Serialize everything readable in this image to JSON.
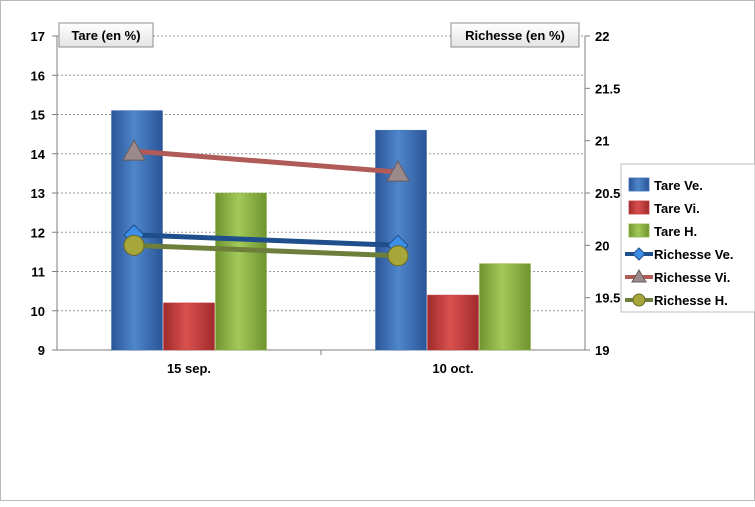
{
  "chart_data": {
    "type": "bar",
    "categories": [
      "15 sep.",
      "10 oct."
    ],
    "left_axis": {
      "label": "Tare (en %)",
      "ylim": [
        9,
        17
      ],
      "ticks": [
        9,
        10,
        11,
        12,
        13,
        14,
        15,
        16,
        17
      ]
    },
    "right_axis": {
      "label": "Richesse (en %)",
      "ylim": [
        19,
        22
      ],
      "ticks": [
        "19",
        "19.5",
        "20",
        "20.5",
        "21",
        "21.5",
        "22"
      ]
    },
    "grid": true,
    "legend_position": "right",
    "bar_series": [
      {
        "name": "Tare Ve.",
        "values": [
          15.1,
          14.6
        ],
        "color": "#3b6fb6"
      },
      {
        "name": "Tare Vi.",
        "values": [
          10.2,
          10.4
        ],
        "color": "#c0393b"
      },
      {
        "name": "Tare H.",
        "values": [
          13.0,
          11.2
        ],
        "color": "#8db13e"
      }
    ],
    "line_series": [
      {
        "name": "Richesse Ve.",
        "values": [
          20.1,
          20.0
        ],
        "color": "#1f4e8c",
        "marker": "diamond"
      },
      {
        "name": "Richesse Vi.",
        "values": [
          20.9,
          20.7
        ],
        "color": "#b05b57",
        "marker": "triangle"
      },
      {
        "name": "Richesse H.",
        "values": [
          20.0,
          19.9
        ],
        "color": "#6e7f3c",
        "marker": "circle"
      }
    ]
  }
}
